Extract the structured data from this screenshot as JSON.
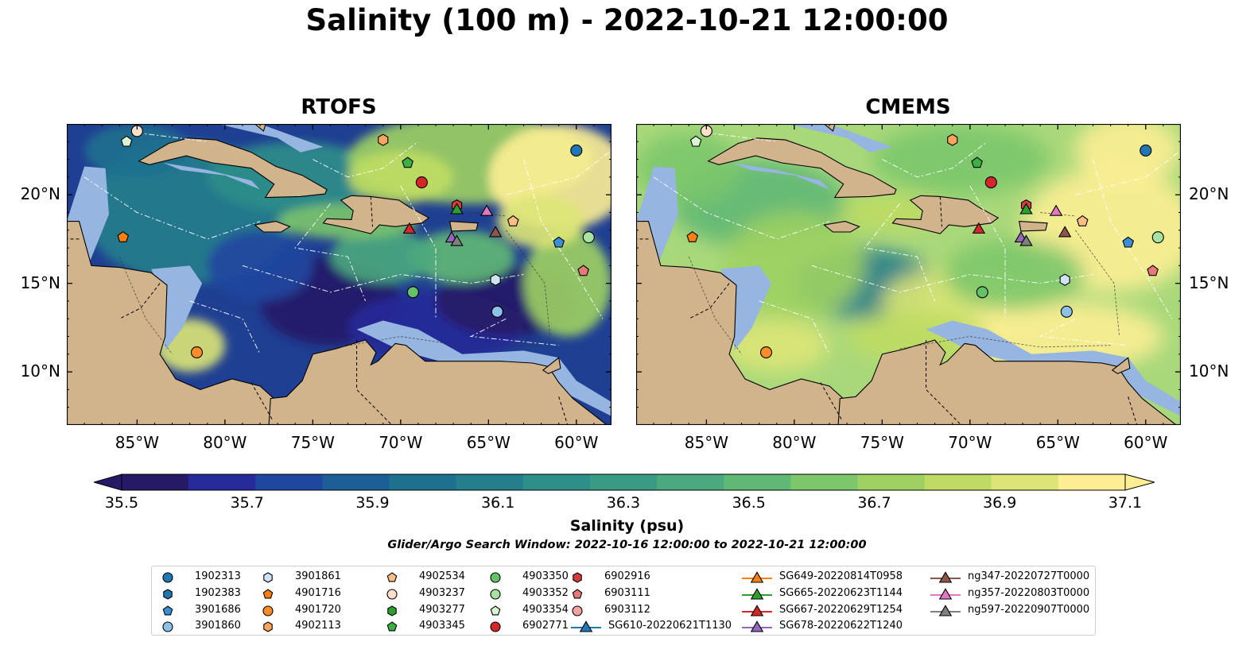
{
  "suptitle": "Salinity (100 m) - 2022-10-21 12:00:00",
  "panels": [
    {
      "title": "RTOFS",
      "field": "rtofs"
    },
    {
      "title": "CMEMS",
      "field": "cmems"
    }
  ],
  "axes": {
    "lon_range": [
      -89,
      -58
    ],
    "lat_range": [
      7,
      24
    ],
    "lon_ticks": [
      "85°W",
      "80°W",
      "75°W",
      "70°W",
      "65°W",
      "60°W"
    ],
    "lon_tick_values": [
      -85,
      -80,
      -75,
      -70,
      -65,
      -60
    ],
    "lat_ticks": [
      "20°N",
      "15°N",
      "10°N"
    ],
    "lat_tick_values": [
      20,
      15,
      10
    ]
  },
  "colorbar": {
    "label": "Salinity (psu)",
    "ticks": [
      "35.5",
      "35.7",
      "35.9",
      "36.1",
      "36.3",
      "36.5",
      "36.7",
      "36.9",
      "37.1"
    ],
    "range": [
      35.5,
      37.1
    ],
    "extend": "both",
    "colors": [
      "#261a66",
      "#262a9a",
      "#1f47a0",
      "#1c5f97",
      "#1e708f",
      "#257e8c",
      "#2d8e8a",
      "#3a9b84",
      "#4aa97e",
      "#5fb875",
      "#7cc66c",
      "#9fd162",
      "#bfdb63",
      "#dde577",
      "#fdee93"
    ]
  },
  "search_window": "Glider/Argo Search Window: 2022-10-16 12:00:00 to 2022-10-21 12:00:00",
  "colors": {
    "land": "#d2b48c",
    "shelf": "#96b5e0",
    "deep_rtofs": "#1f3f92",
    "deep_cmems": "#a9d87a"
  },
  "legend": {
    "argo": [
      {
        "id": "1902313",
        "marker": "circle",
        "color": "#1f77b4"
      },
      {
        "id": "1902383",
        "marker": "hexagon",
        "color": "#1f77b4"
      },
      {
        "id": "3901686",
        "marker": "pentagon",
        "color": "#3b8fd4"
      },
      {
        "id": "3901860",
        "marker": "circle",
        "color": "#8cc2e8"
      },
      {
        "id": "3901861",
        "marker": "hexagon",
        "color": "#cfe3f5"
      },
      {
        "id": "4901716",
        "marker": "pentagon",
        "color": "#ff7f0e"
      },
      {
        "id": "4901720",
        "marker": "circle",
        "color": "#ff8c28"
      },
      {
        "id": "4902113",
        "marker": "hexagon",
        "color": "#ffa65c"
      },
      {
        "id": "4902534",
        "marker": "pentagon",
        "color": "#ffbe84"
      },
      {
        "id": "4903237",
        "marker": "circle",
        "color": "#ffe0c8"
      },
      {
        "id": "4903277",
        "marker": "hexagon",
        "color": "#2ca02c"
      },
      {
        "id": "4903345",
        "marker": "pentagon",
        "color": "#3cb043"
      },
      {
        "id": "4903350",
        "marker": "circle",
        "color": "#66c266"
      },
      {
        "id": "4903352",
        "marker": "circle",
        "color": "#a6e3a1"
      },
      {
        "id": "4903354",
        "marker": "pentagon",
        "color": "#d9f5d3"
      },
      {
        "id": "6902771",
        "marker": "circle",
        "color": "#d62728"
      },
      {
        "id": "6902916",
        "marker": "hexagon",
        "color": "#d93a3a"
      },
      {
        "id": "6903111",
        "marker": "pentagon",
        "color": "#e8797a"
      },
      {
        "id": "6903112",
        "marker": "circle",
        "color": "#f4a3a3"
      }
    ],
    "gliders": [
      {
        "id": "SG610-20220621T1130",
        "color": "#1f77b4"
      },
      {
        "id": "SG649-20220814T0958",
        "color": "#ff7f0e"
      },
      {
        "id": "SG665-20220623T1144",
        "color": "#2ca02c"
      },
      {
        "id": "SG667-20220629T1254",
        "color": "#d62728"
      },
      {
        "id": "SG678-20220622T1240",
        "color": "#9467bd"
      },
      {
        "id": "ng347-20220727T0000",
        "color": "#8c564b"
      },
      {
        "id": "ng357-20220803T0000",
        "color": "#e377c2"
      },
      {
        "id": "ng597-20220907T0000",
        "color": "#7f7f7f"
      }
    ]
  },
  "observations": [
    {
      "id": "4903237",
      "lon": -85.0,
      "lat": 23.6
    },
    {
      "id": "4903354",
      "lon": -85.6,
      "lat": 23.0
    },
    {
      "id": "4901716",
      "lon": -85.8,
      "lat": 17.6
    },
    {
      "id": "4901720",
      "lon": -81.6,
      "lat": 11.1
    },
    {
      "id": "4902113",
      "lon": -71.0,
      "lat": 23.1
    },
    {
      "id": "4903345",
      "lon": -69.6,
      "lat": 21.8
    },
    {
      "id": "6902771",
      "lon": -68.8,
      "lat": 20.7
    },
    {
      "id": "6902916",
      "lon": -66.8,
      "lat": 19.4
    },
    {
      "id": "4903350",
      "lon": -69.3,
      "lat": 14.5
    },
    {
      "id": "1902313",
      "lon": -60.0,
      "lat": 22.5
    },
    {
      "id": "4902534",
      "lon": -63.6,
      "lat": 18.5
    },
    {
      "id": "3901686",
      "lon": -61.0,
      "lat": 17.3
    },
    {
      "id": "4903352",
      "lon": -59.3,
      "lat": 17.6
    },
    {
      "id": "6903111",
      "lon": -59.6,
      "lat": 15.7
    },
    {
      "id": "3901861",
      "lon": -64.6,
      "lat": 15.2
    },
    {
      "id": "3901860",
      "lon": -64.5,
      "lat": 13.4
    },
    {
      "id": "SG665-20220623T1144",
      "lon": -66.8,
      "lat": 19.2
    },
    {
      "id": "SG667-20220629T1254",
      "lon": -69.5,
      "lat": 18.1
    },
    {
      "id": "ng357-20220803T0000",
      "lon": -65.1,
      "lat": 19.1
    },
    {
      "id": "SG678-20220622T1240",
      "lon": -67.1,
      "lat": 17.6
    },
    {
      "id": "ng597-20220907T0000",
      "lon": -66.8,
      "lat": 17.4
    },
    {
      "id": "ng347-20220727T0000",
      "lon": -64.6,
      "lat": 17.9
    }
  ]
}
